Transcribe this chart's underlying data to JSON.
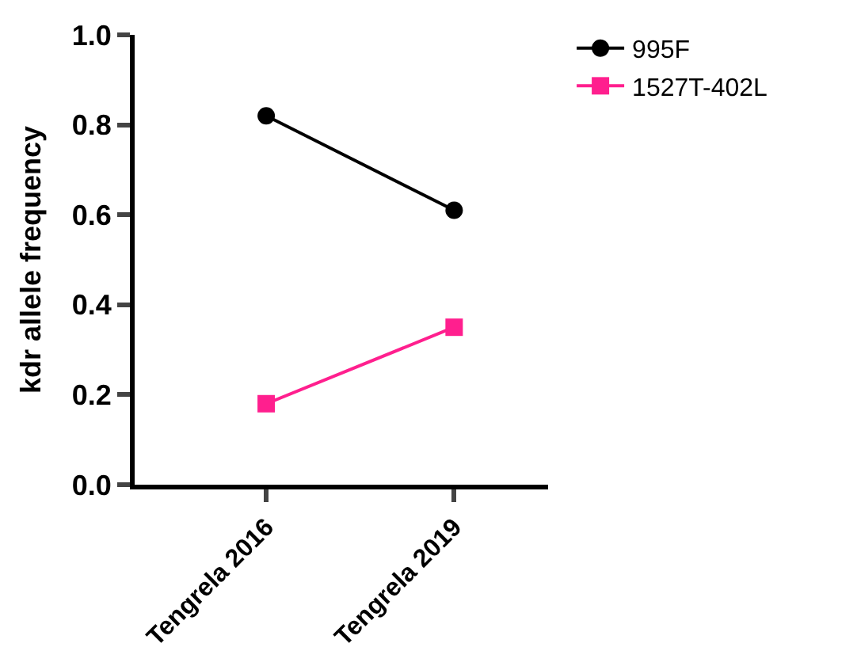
{
  "chart_data": {
    "type": "line",
    "ylabel": "kdr allele frequency",
    "categories": [
      "Tengrela 2016",
      "Tengrela 2019"
    ],
    "series": [
      {
        "name": "995F",
        "color": "#000000",
        "values": [
          0.82,
          0.61
        ],
        "marker": "circle"
      },
      {
        "name": "1527T-402L",
        "color": "#ff1f8e",
        "values": [
          0.18,
          0.35
        ],
        "marker": "square"
      }
    ],
    "ylim": [
      0,
      1.0
    ],
    "yticks": [
      {
        "value": 0,
        "label": "0.0"
      },
      0.2,
      0.4,
      0.6,
      0.8,
      {
        "value": 1.0,
        "label": "1.0"
      }
    ],
    "legend": "top right",
    "line_style": "solid"
  }
}
